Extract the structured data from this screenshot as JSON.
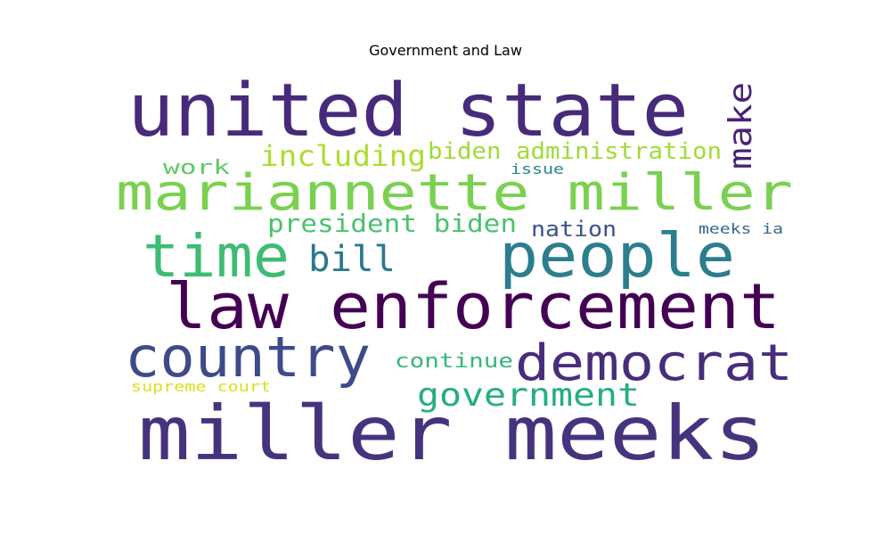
{
  "chart_data": {
    "type": "wordcloud",
    "title": "Government and Law",
    "words": [
      {
        "text": "united state",
        "color": "#472a7a"
      },
      {
        "text": "miller meeks",
        "color": "#46337e"
      },
      {
        "text": "law enforcement",
        "color": "#440154"
      },
      {
        "text": "mariannette miller",
        "color": "#7ad151"
      },
      {
        "text": "people",
        "color": "#2c7e8e"
      },
      {
        "text": "country",
        "color": "#3e4a89"
      },
      {
        "text": "democrat",
        "color": "#472d7b"
      },
      {
        "text": "time",
        "color": "#3dbc74"
      },
      {
        "text": "government",
        "color": "#27ad81"
      },
      {
        "text": "bill",
        "color": "#29798e"
      },
      {
        "text": "make",
        "color": "#482374"
      },
      {
        "text": "including",
        "color": "#addc30"
      },
      {
        "text": "biden administration",
        "color": "#a0da39"
      },
      {
        "text": "president biden",
        "color": "#4ac16d"
      },
      {
        "text": "nation",
        "color": "#3b528b"
      },
      {
        "text": "work",
        "color": "#5ec962"
      },
      {
        "text": "continue",
        "color": "#35b779"
      },
      {
        "text": "issue",
        "color": "#25858e"
      },
      {
        "text": "meeks ia",
        "color": "#31688e"
      },
      {
        "text": "supreme court",
        "color": "#d8e219"
      }
    ]
  }
}
